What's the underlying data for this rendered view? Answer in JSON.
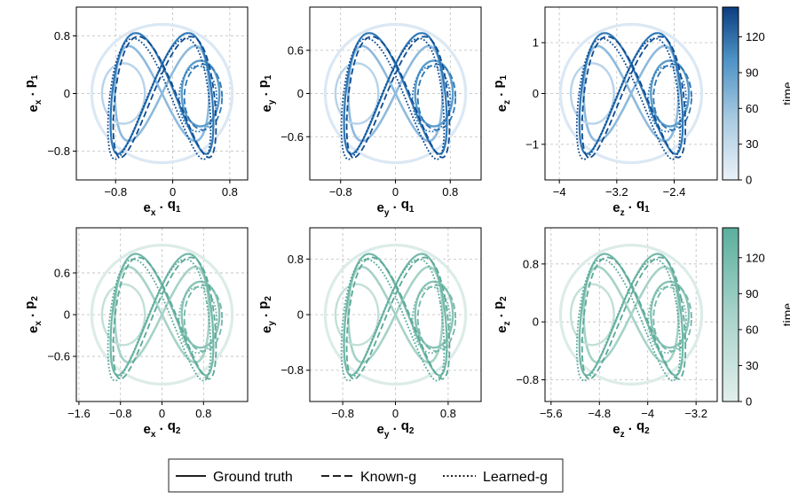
{
  "chart_data": [
    {
      "type": "line",
      "panel": "top-left",
      "xlabel": {
        "vec": "e",
        "vec_sub": "x",
        "dot": " · ",
        "var": "q",
        "var_sub": "1"
      },
      "ylabel": {
        "vec": "e",
        "vec_sub": "x",
        "dot": " · ",
        "var": "p",
        "var_sub": "1"
      },
      "xlim": [
        -1.35,
        1.05
      ],
      "ylim": [
        -1.2,
        1.2
      ],
      "xticks": [
        -0.8,
        0,
        0.8
      ],
      "xtick_labels": [
        "−0.8",
        "0",
        "0.8"
      ],
      "yticks": [
        -0.8,
        0,
        0.8
      ],
      "ytick_labels": [
        "−0.8",
        "0",
        "0.8"
      ],
      "colormap": "blues",
      "series": [
        {
          "name": "Ground truth",
          "style": "solid"
        },
        {
          "name": "Known-g",
          "style": "dashed"
        },
        {
          "name": "Learned-g",
          "style": "dotted"
        }
      ]
    },
    {
      "type": "line",
      "panel": "top-middle",
      "xlabel": {
        "vec": "e",
        "vec_sub": "y",
        "dot": " · ",
        "var": "q",
        "var_sub": "1"
      },
      "ylabel": {
        "vec": "e",
        "vec_sub": "y",
        "dot": " · ",
        "var": "p",
        "var_sub": "1"
      },
      "xlim": [
        -1.25,
        1.25
      ],
      "ylim": [
        -1.2,
        1.2
      ],
      "xticks": [
        -0.8,
        0,
        0.8
      ],
      "xtick_labels": [
        "−0.8",
        "0",
        "0.8"
      ],
      "yticks": [
        -0.6,
        0,
        0.6
      ],
      "ytick_labels": [
        "−0.6",
        "0",
        "0.6"
      ],
      "colormap": "blues",
      "series": [
        {
          "name": "Ground truth",
          "style": "solid"
        },
        {
          "name": "Known-g",
          "style": "dashed"
        },
        {
          "name": "Learned-g",
          "style": "dotted"
        }
      ]
    },
    {
      "type": "line",
      "panel": "top-right",
      "xlabel": {
        "vec": "e",
        "vec_sub": "z",
        "dot": " · ",
        "var": "q",
        "var_sub": "1"
      },
      "ylabel": {
        "vec": "e",
        "vec_sub": "z",
        "dot": " · ",
        "var": "p",
        "var_sub": "1"
      },
      "xlim": [
        -4.2,
        -1.8
      ],
      "ylim": [
        -1.7,
        1.7
      ],
      "xticks": [
        -4,
        -3.2,
        -2.4
      ],
      "xtick_labels": [
        "−4",
        "−3.2",
        "−2.4"
      ],
      "yticks": [
        -1,
        0,
        1
      ],
      "ytick_labels": [
        "−1",
        "0",
        "1"
      ],
      "colormap": "blues",
      "colorbar": {
        "label": "time",
        "range": [
          0,
          145
        ],
        "ticks": [
          0,
          30,
          60,
          90,
          120
        ],
        "tick_labels": [
          "0",
          "30",
          "60",
          "90",
          "120"
        ]
      },
      "series": [
        {
          "name": "Ground truth",
          "style": "solid"
        },
        {
          "name": "Known-g",
          "style": "dashed"
        },
        {
          "name": "Learned-g",
          "style": "dotted"
        }
      ]
    },
    {
      "type": "line",
      "panel": "bottom-left",
      "xlabel": {
        "vec": "e",
        "vec_sub": "x",
        "dot": " · ",
        "var": "q",
        "var_sub": "2"
      },
      "ylabel": {
        "vec": "e",
        "vec_sub": "x",
        "dot": " · ",
        "var": "p",
        "var_sub": "2"
      },
      "xlim": [
        -1.65,
        1.65
      ],
      "ylim": [
        -1.25,
        1.25
      ],
      "xticks": [
        -1.6,
        -0.8,
        0,
        0.8
      ],
      "xtick_labels": [
        "−1.6",
        "−0.8",
        "0",
        "0.8"
      ],
      "yticks": [
        -0.6,
        0,
        0.6
      ],
      "ytick_labels": [
        "−0.6",
        "0",
        "0.6"
      ],
      "colormap": "teals",
      "series": [
        {
          "name": "Ground truth",
          "style": "solid"
        },
        {
          "name": "Known-g",
          "style": "dashed"
        },
        {
          "name": "Learned-g",
          "style": "dotted"
        }
      ]
    },
    {
      "type": "line",
      "panel": "bottom-middle",
      "xlabel": {
        "vec": "e",
        "vec_sub": "y",
        "dot": " · ",
        "var": "q",
        "var_sub": "2"
      },
      "ylabel": {
        "vec": "e",
        "vec_sub": "y",
        "dot": " · ",
        "var": "p",
        "var_sub": "2"
      },
      "xlim": [
        -1.3,
        1.3
      ],
      "ylim": [
        -1.25,
        1.25
      ],
      "xticks": [
        -0.8,
        0,
        0.8
      ],
      "xtick_labels": [
        "−0.8",
        "0",
        "0.8"
      ],
      "yticks": [
        -0.8,
        0,
        0.8
      ],
      "ytick_labels": [
        "−0.8",
        "0",
        "0.8"
      ],
      "colormap": "teals",
      "series": [
        {
          "name": "Ground truth",
          "style": "solid"
        },
        {
          "name": "Known-g",
          "style": "dashed"
        },
        {
          "name": "Learned-g",
          "style": "dotted"
        }
      ]
    },
    {
      "type": "line",
      "panel": "bottom-right",
      "xlabel": {
        "vec": "e",
        "vec_sub": "z",
        "dot": " · ",
        "var": "q",
        "var_sub": "2"
      },
      "ylabel": {
        "vec": "e",
        "vec_sub": "z",
        "dot": " · ",
        "var": "p",
        "var_sub": "2"
      },
      "xlim": [
        -5.7,
        -2.85
      ],
      "ylim": [
        -1.1,
        1.3
      ],
      "xticks": [
        -5.6,
        -4.8,
        -4,
        -3.2
      ],
      "xtick_labels": [
        "−5.6",
        "−4.8",
        "−4",
        "−3.2"
      ],
      "yticks": [
        -0.8,
        0,
        0.8
      ],
      "ytick_labels": [
        "−0.8",
        "0",
        "0.8"
      ],
      "colormap": "teals",
      "colorbar": {
        "label": "time",
        "range": [
          0,
          145
        ],
        "ticks": [
          0,
          30,
          60,
          90,
          120
        ],
        "tick_labels": [
          "0",
          "30",
          "60",
          "90",
          "120"
        ]
      },
      "series": [
        {
          "name": "Ground truth",
          "style": "solid"
        },
        {
          "name": "Known-g",
          "style": "dashed"
        },
        {
          "name": "Learned-g",
          "style": "dotted"
        }
      ]
    }
  ],
  "legend": {
    "items": [
      {
        "label": "Ground truth",
        "style": "solid"
      },
      {
        "label": "Known-g",
        "style": "dashed"
      },
      {
        "label": "Learned-g",
        "style": "dotted"
      }
    ]
  }
}
